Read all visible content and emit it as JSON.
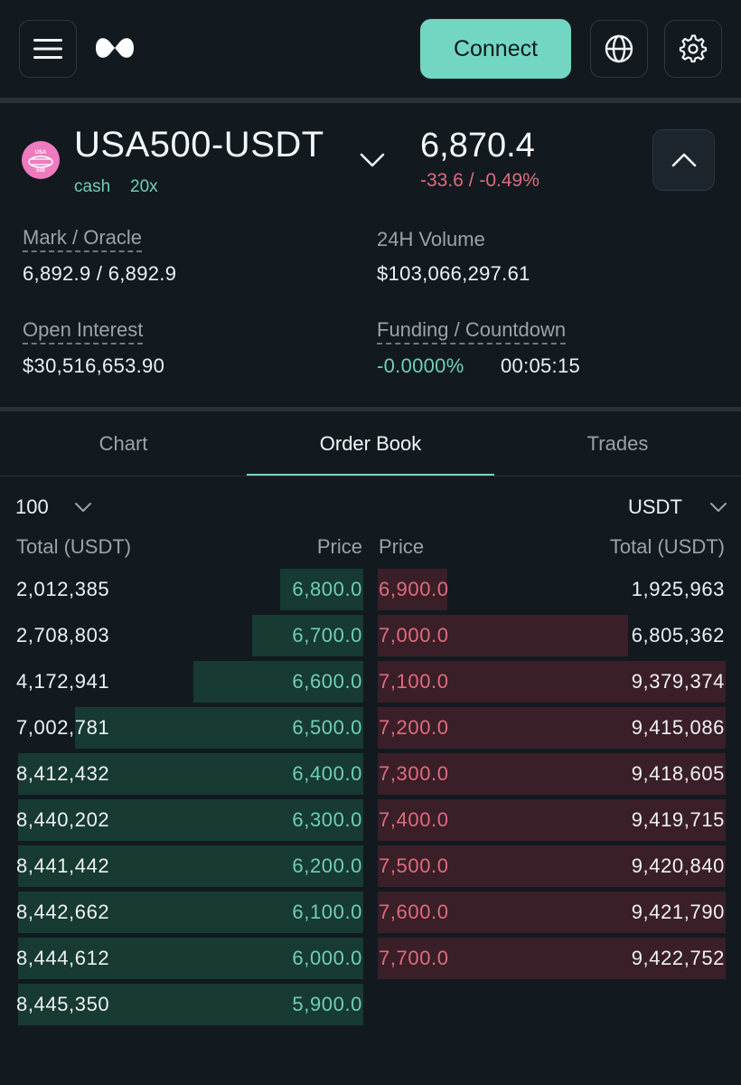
{
  "header": {
    "connect_label": "Connect",
    "menu_icon": "hamburger-menu-icon",
    "logo_icon": "brand-logo-icon",
    "globe_icon": "globe-icon",
    "settings_icon": "gear-icon"
  },
  "market": {
    "pair": "USA500-USDT",
    "tag_type": "cash",
    "tag_leverage": "20x",
    "last_price": "6,870.4",
    "change": "-33.6 / -0.49%",
    "logo_text_top": "USA",
    "logo_text_bottom": "500"
  },
  "stats": {
    "mark_label": "Mark / Oracle",
    "mark_value": "6,892.9 / 6,892.9",
    "volume_label": "24H Volume",
    "volume_value": "$103,066,297.61",
    "oi_label": "Open Interest",
    "oi_value": "$30,516,653.90",
    "funding_label": "Funding / Countdown",
    "funding_rate": "-0.0000%",
    "countdown": "00:05:15"
  },
  "tabs": {
    "chart": "Chart",
    "orderbook": "Order Book",
    "trades": "Trades"
  },
  "orderbook": {
    "grouping": "100",
    "unit": "USDT",
    "headers": {
      "bid_total": "Total (USDT)",
      "bid_price": "Price",
      "ask_price": "Price",
      "ask_total": "Total (USDT)"
    },
    "bids": [
      {
        "total": "2,012,385",
        "price": "6,800.0",
        "depth": 0.24
      },
      {
        "total": "2,708,803",
        "price": "6,700.0",
        "depth": 0.32
      },
      {
        "total": "4,172,941",
        "price": "6,600.0",
        "depth": 0.49
      },
      {
        "total": "7,002,781",
        "price": "6,500.0",
        "depth": 0.83
      },
      {
        "total": "8,412,432",
        "price": "6,400.0",
        "depth": 0.996
      },
      {
        "total": "8,440,202",
        "price": "6,300.0",
        "depth": 0.996
      },
      {
        "total": "8,441,442",
        "price": "6,200.0",
        "depth": 0.996
      },
      {
        "total": "8,442,662",
        "price": "6,100.0",
        "depth": 0.996
      },
      {
        "total": "8,444,612",
        "price": "6,000.0",
        "depth": 0.996
      },
      {
        "total": "8,445,350",
        "price": "5,900.0",
        "depth": 0.996
      }
    ],
    "asks": [
      {
        "price": "6,900.0",
        "total": "1,925,963",
        "depth": 0.2
      },
      {
        "price": "7,000.0",
        "total": "6,805,362",
        "depth": 0.72
      },
      {
        "price": "7,100.0",
        "total": "9,379,374",
        "depth": 1.0
      },
      {
        "price": "7,200.0",
        "total": "9,415,086",
        "depth": 1.0
      },
      {
        "price": "7,300.0",
        "total": "9,418,605",
        "depth": 1.0
      },
      {
        "price": "7,400.0",
        "total": "9,419,715",
        "depth": 1.0
      },
      {
        "price": "7,500.0",
        "total": "9,420,840",
        "depth": 1.0
      },
      {
        "price": "7,600.0",
        "total": "9,421,790",
        "depth": 1.0
      },
      {
        "price": "7,700.0",
        "total": "9,422,752",
        "depth": 1.0
      }
    ]
  }
}
